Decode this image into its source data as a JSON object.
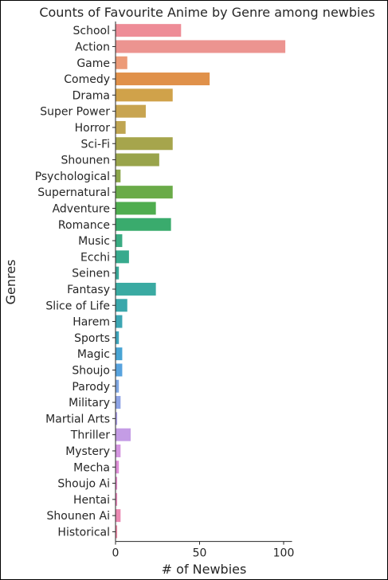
{
  "chart_data": {
    "type": "bar",
    "orientation": "horizontal",
    "title": "Counts of Favourite Anime by Genre among newbies",
    "xlabel": "# of Newbies",
    "ylabel": "Genres",
    "xlim": [
      0,
      105
    ],
    "xticks": [
      "0",
      "50",
      "100"
    ],
    "grid": false,
    "legend": false,
    "categories": [
      "School",
      "Action",
      "Game",
      "Comedy",
      "Drama",
      "Super Power",
      "Horror",
      "Sci-Fi",
      "Shounen",
      "Psychological",
      "Supernatural",
      "Adventure",
      "Romance",
      "Music",
      "Ecchi",
      "Seinen",
      "Fantasy",
      "Slice of Life",
      "Harem",
      "Sports",
      "Magic",
      "Shoujo",
      "Parody",
      "Military",
      "Martial Arts",
      "Thriller",
      "Mystery",
      "Mecha",
      "Shoujo Ai",
      "Hentai",
      "Shounen Ai",
      "Historical"
    ],
    "values": [
      39,
      101,
      7,
      56,
      34,
      18,
      6,
      34,
      26,
      3,
      34,
      24,
      33,
      4,
      8,
      2,
      24,
      7,
      4,
      2,
      4,
      4,
      2,
      3,
      1,
      9,
      3,
      2,
      1,
      1,
      3,
      1
    ],
    "colors": [
      "#ee8c97",
      "#ec9490",
      "#ec9a77",
      "#e0914a",
      "#d0a24a",
      "#c8a450",
      "#bfa552",
      "#a6a54c",
      "#99a44b",
      "#8ca64b",
      "#6aab48",
      "#4fad4f",
      "#3aab6d",
      "#3aab82",
      "#37aa8d",
      "#38a898",
      "#3aaaa2",
      "#3aa7ab",
      "#3ca6b3",
      "#3da4bb",
      "#48a4d3",
      "#58a3de",
      "#7ea6e2",
      "#8ea4e6",
      "#a99ee6",
      "#c49ce5",
      "#d496e0",
      "#de8ed7",
      "#e58ccb",
      "#e98abd",
      "#eb89b2",
      "#ed8aa6"
    ]
  }
}
